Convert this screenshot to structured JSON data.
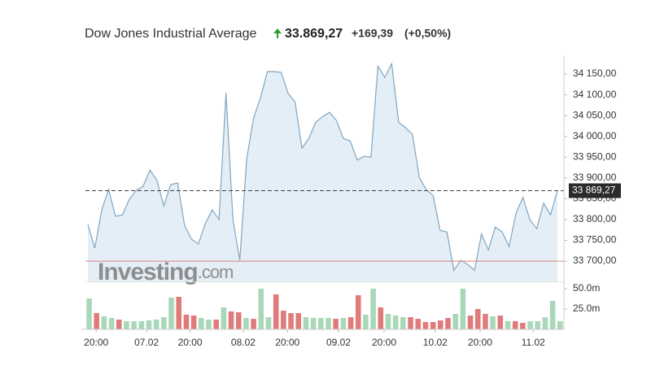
{
  "chart_data": [
    {
      "type": "area",
      "title": "Dow Jones Industrial Average",
      "price": "33.869,27",
      "change": "+169,39",
      "change_pct": "(+0,50%)",
      "change_color": "#2e9e2e",
      "color": "#7fa6c0",
      "fill": "#e4eef7",
      "values": [
        33788,
        33731,
        33823,
        33872,
        33808,
        33811,
        33849,
        33870,
        33880,
        33919,
        33894,
        33833,
        33884,
        33888,
        33786,
        33753,
        33741,
        33790,
        33823,
        33800,
        34105,
        33800,
        33702,
        33946,
        34044,
        34093,
        34156,
        34156,
        34154,
        34103,
        34083,
        33972,
        33995,
        34034,
        34048,
        34058,
        34038,
        33995,
        33989,
        33943,
        33952,
        33950,
        34169,
        34142,
        34175,
        34034,
        34021,
        34005,
        33901,
        33872,
        33858,
        33774,
        33770,
        33678,
        33702,
        33692,
        33678,
        33765,
        33727,
        33782,
        33770,
        33735,
        33815,
        33853,
        33800,
        33778,
        33839,
        33811,
        33869.27
      ],
      "ylim": [
        33650,
        34190
      ],
      "yticks": [
        {
          "value": 33700,
          "label": "33 700,00"
        },
        {
          "value": 33750,
          "label": "33 750,00"
        },
        {
          "value": 33800,
          "label": "33 800,00"
        },
        {
          "value": 33850,
          "label": "33 850,00"
        },
        {
          "value": 33900,
          "label": "33 900,00"
        },
        {
          "value": 33950,
          "label": "33 950,00"
        },
        {
          "value": 34000,
          "label": "34 000,00"
        },
        {
          "value": 34050,
          "label": "34 050,00"
        },
        {
          "value": 34100,
          "label": "34 100,00"
        },
        {
          "value": 34150,
          "label": "34 150,00"
        }
      ],
      "xticks": [
        {
          "value": 1.2,
          "label": "20:00"
        },
        {
          "value": 8.5,
          "label": "07.02"
        },
        {
          "value": 14.8,
          "label": "20:00"
        },
        {
          "value": 22.5,
          "label": "08.02"
        },
        {
          "value": 28.9,
          "label": "20:00"
        },
        {
          "value": 36.3,
          "label": "09.02"
        },
        {
          "value": 42.9,
          "label": "20:00"
        },
        {
          "value": 50.3,
          "label": "10.02"
        },
        {
          "value": 56.8,
          "label": "20:00"
        },
        {
          "value": 64.5,
          "label": "11.02"
        }
      ],
      "last": {
        "value": 33869.27,
        "label": "33 869,27"
      },
      "reference_line": 33699.88,
      "reference_color": "#e08080",
      "watermark": "Investing",
      "watermark_suffix": ".com"
    },
    {
      "type": "bar",
      "up_color": "#a9d8b8",
      "down_color": "#e07b7b",
      "values": [
        38,
        20,
        16,
        14,
        12,
        10,
        10,
        10,
        11,
        12,
        15,
        39,
        40,
        18,
        17,
        14,
        12,
        12,
        27,
        22,
        21,
        14,
        13,
        50,
        15,
        43,
        23,
        20,
        20,
        15,
        14,
        14,
        14,
        13,
        14,
        15,
        42,
        18,
        50,
        27,
        19,
        17,
        15,
        15,
        13,
        9,
        9,
        11,
        14,
        19,
        50,
        17,
        25,
        19,
        16,
        17,
        10,
        10,
        8,
        10,
        10,
        15,
        35,
        10
      ],
      "up": [
        true,
        false,
        true,
        true,
        false,
        true,
        true,
        true,
        true,
        true,
        true,
        true,
        false,
        false,
        false,
        true,
        true,
        false,
        true,
        false,
        false,
        true,
        false,
        true,
        true,
        false,
        false,
        false,
        false,
        true,
        true,
        true,
        true,
        false,
        true,
        false,
        false,
        true,
        true,
        false,
        true,
        true,
        true,
        false,
        false,
        false,
        false,
        false,
        false,
        true,
        true,
        false,
        false,
        false,
        true,
        false,
        true,
        false,
        false,
        true,
        true,
        true,
        true,
        true
      ],
      "ylim": [
        0,
        55
      ],
      "yticks": [
        {
          "value": 25,
          "label": "25.0m"
        },
        {
          "value": 50,
          "label": "50.0m"
        }
      ]
    }
  ]
}
